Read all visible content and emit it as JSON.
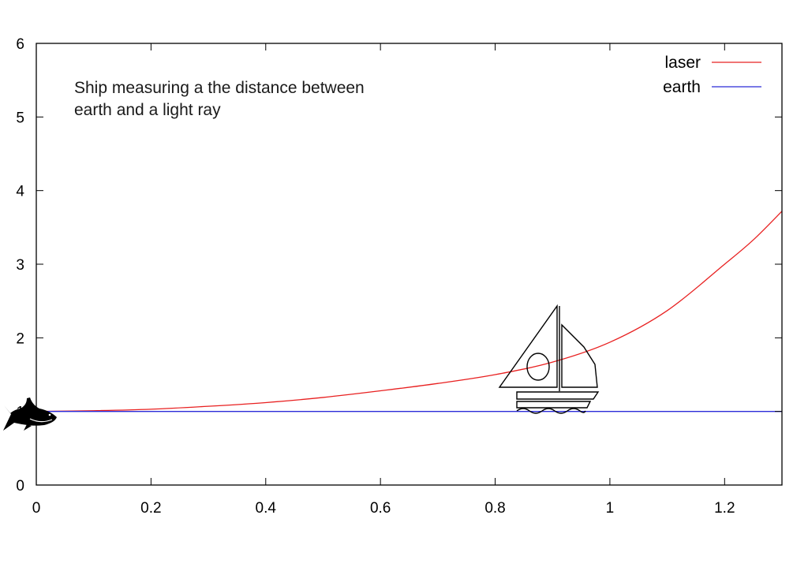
{
  "chart_data": {
    "type": "line",
    "title": "",
    "xlabel": "",
    "ylabel": "",
    "xlim": [
      0,
      1.3
    ],
    "ylim": [
      0,
      6
    ],
    "xticks": [
      0,
      0.2,
      0.4,
      0.6,
      0.8,
      1,
      1.2
    ],
    "xtick_labels": [
      "0",
      "0.2",
      "0.4",
      "0.6",
      "0.8",
      "1",
      "1.2"
    ],
    "yticks": [
      0,
      1,
      2,
      3,
      4,
      5,
      6
    ],
    "ytick_labels": [
      "0",
      "1",
      "2",
      "3",
      "4",
      "5",
      "6"
    ],
    "grid": false,
    "legend_position": "top-right",
    "annotation": {
      "lines": [
        "Ship measuring a the distance between",
        "earth and a light ray"
      ],
      "x": 0.065,
      "y": 5.2
    },
    "series": [
      {
        "name": "laser",
        "color": "#e82020",
        "x": [
          0,
          0.1,
          0.2,
          0.3,
          0.4,
          0.5,
          0.6,
          0.7,
          0.8,
          0.9,
          1.0,
          1.1,
          1.2,
          1.25,
          1.3
        ],
        "y": [
          1.0,
          1.01,
          1.03,
          1.07,
          1.12,
          1.19,
          1.28,
          1.38,
          1.5,
          1.67,
          1.94,
          2.37,
          3.0,
          3.33,
          3.72
        ]
      },
      {
        "name": "earth",
        "color": "#2b2bd8",
        "x": [
          0,
          1.3
        ],
        "y": [
          1,
          1
        ]
      }
    ],
    "markers": [
      {
        "name": "sailboat-icon",
        "x": 0.9
      },
      {
        "name": "shark-icon",
        "x": 0
      }
    ]
  }
}
